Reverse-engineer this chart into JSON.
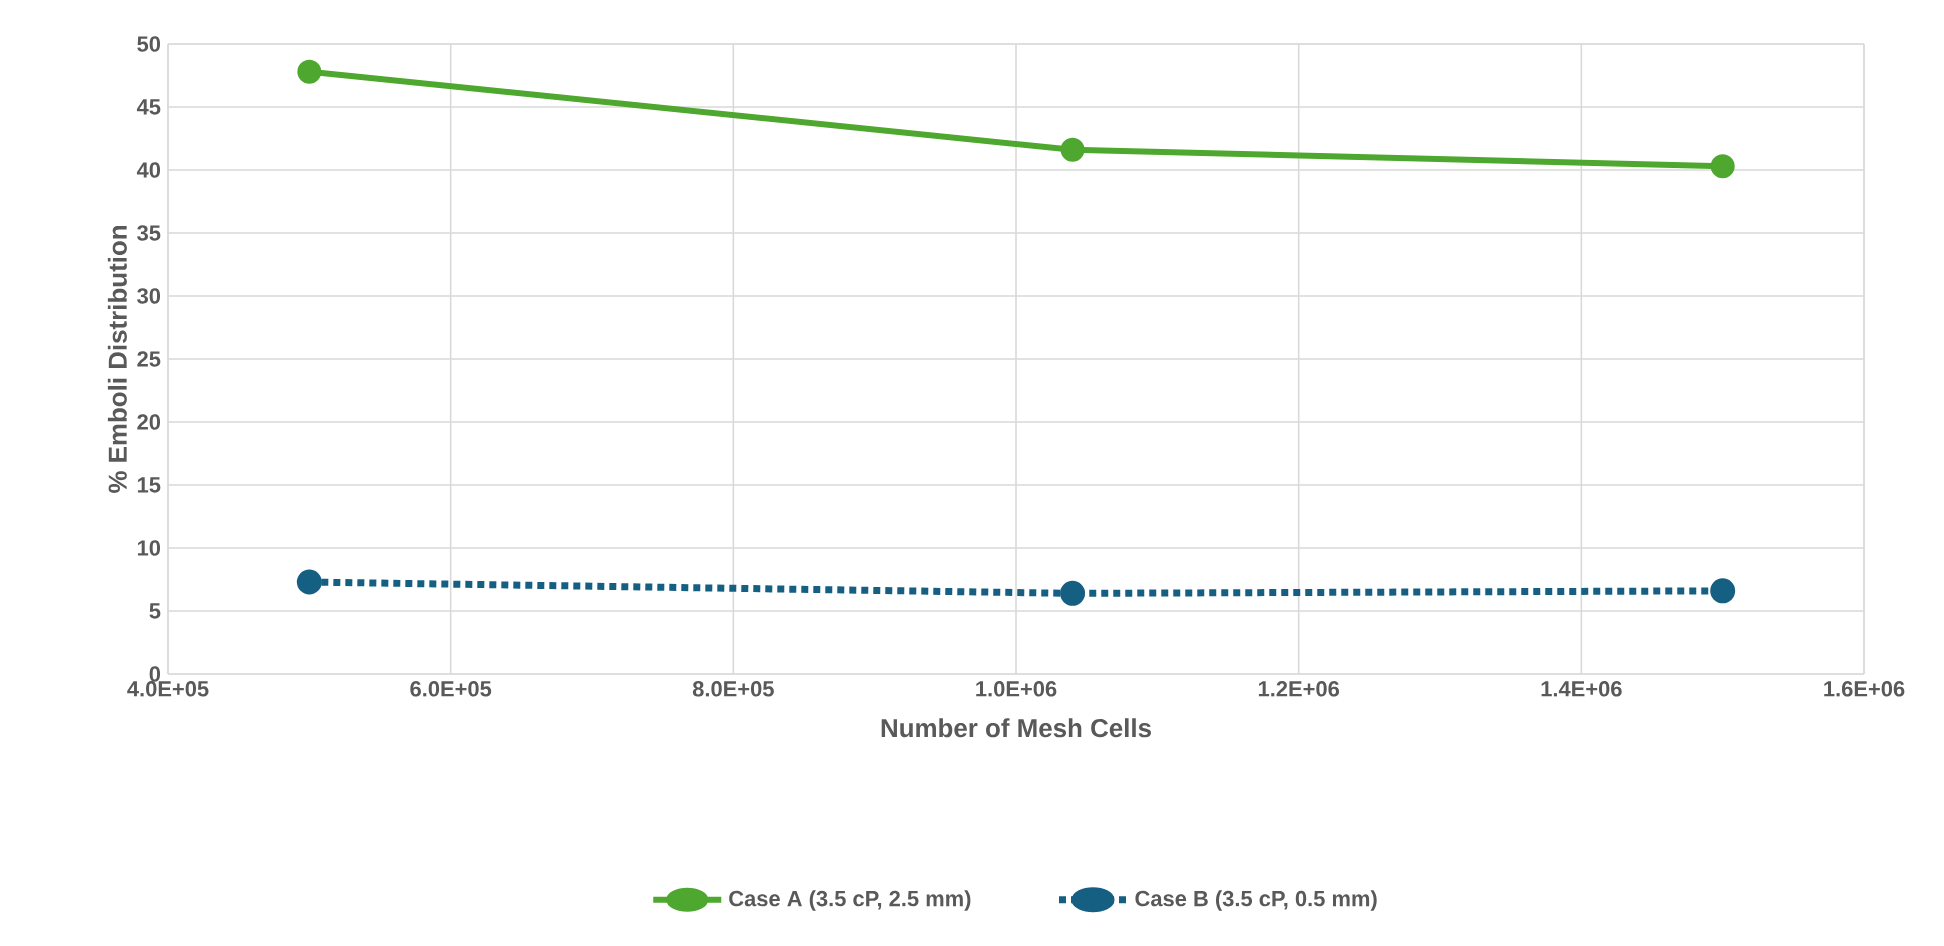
{
  "chart_data": {
    "type": "line",
    "xlabel": "Number of Mesh Cells",
    "ylabel": "% Emboli Distribution",
    "series": [
      {
        "name": "Case A (3.5 cP, 2.5 mm)",
        "color": "#4ea72e",
        "x": [
          500000,
          1040000,
          1500000
        ],
        "values": [
          47.8,
          41.6,
          40.3
        ],
        "line_style": "solid"
      },
      {
        "name": "Case B (3.5 cP, 0.5 mm)",
        "color": "#156082",
        "x": [
          500000,
          1040000,
          1500000
        ],
        "values": [
          7.3,
          6.4,
          6.6
        ],
        "line_style": "dotted"
      }
    ],
    "xlim": [
      400000,
      1600000
    ],
    "xticks": [
      {
        "value": 400000,
        "label": "4.0E+05"
      },
      {
        "value": 600000,
        "label": "6.0E+05"
      },
      {
        "value": 800000,
        "label": "8.0E+05"
      },
      {
        "value": 1000000,
        "label": "1.0E+06"
      },
      {
        "value": 1200000,
        "label": "1.2E+06"
      },
      {
        "value": 1400000,
        "label": "1.4E+06"
      },
      {
        "value": 1600000,
        "label": "1.6E+06"
      }
    ],
    "ylim": [
      0,
      50
    ],
    "yticks": [
      0,
      5,
      10,
      15,
      20,
      25,
      30,
      35,
      40,
      45,
      50
    ],
    "grid": true,
    "legend": "bottom",
    "marker": "circle"
  }
}
